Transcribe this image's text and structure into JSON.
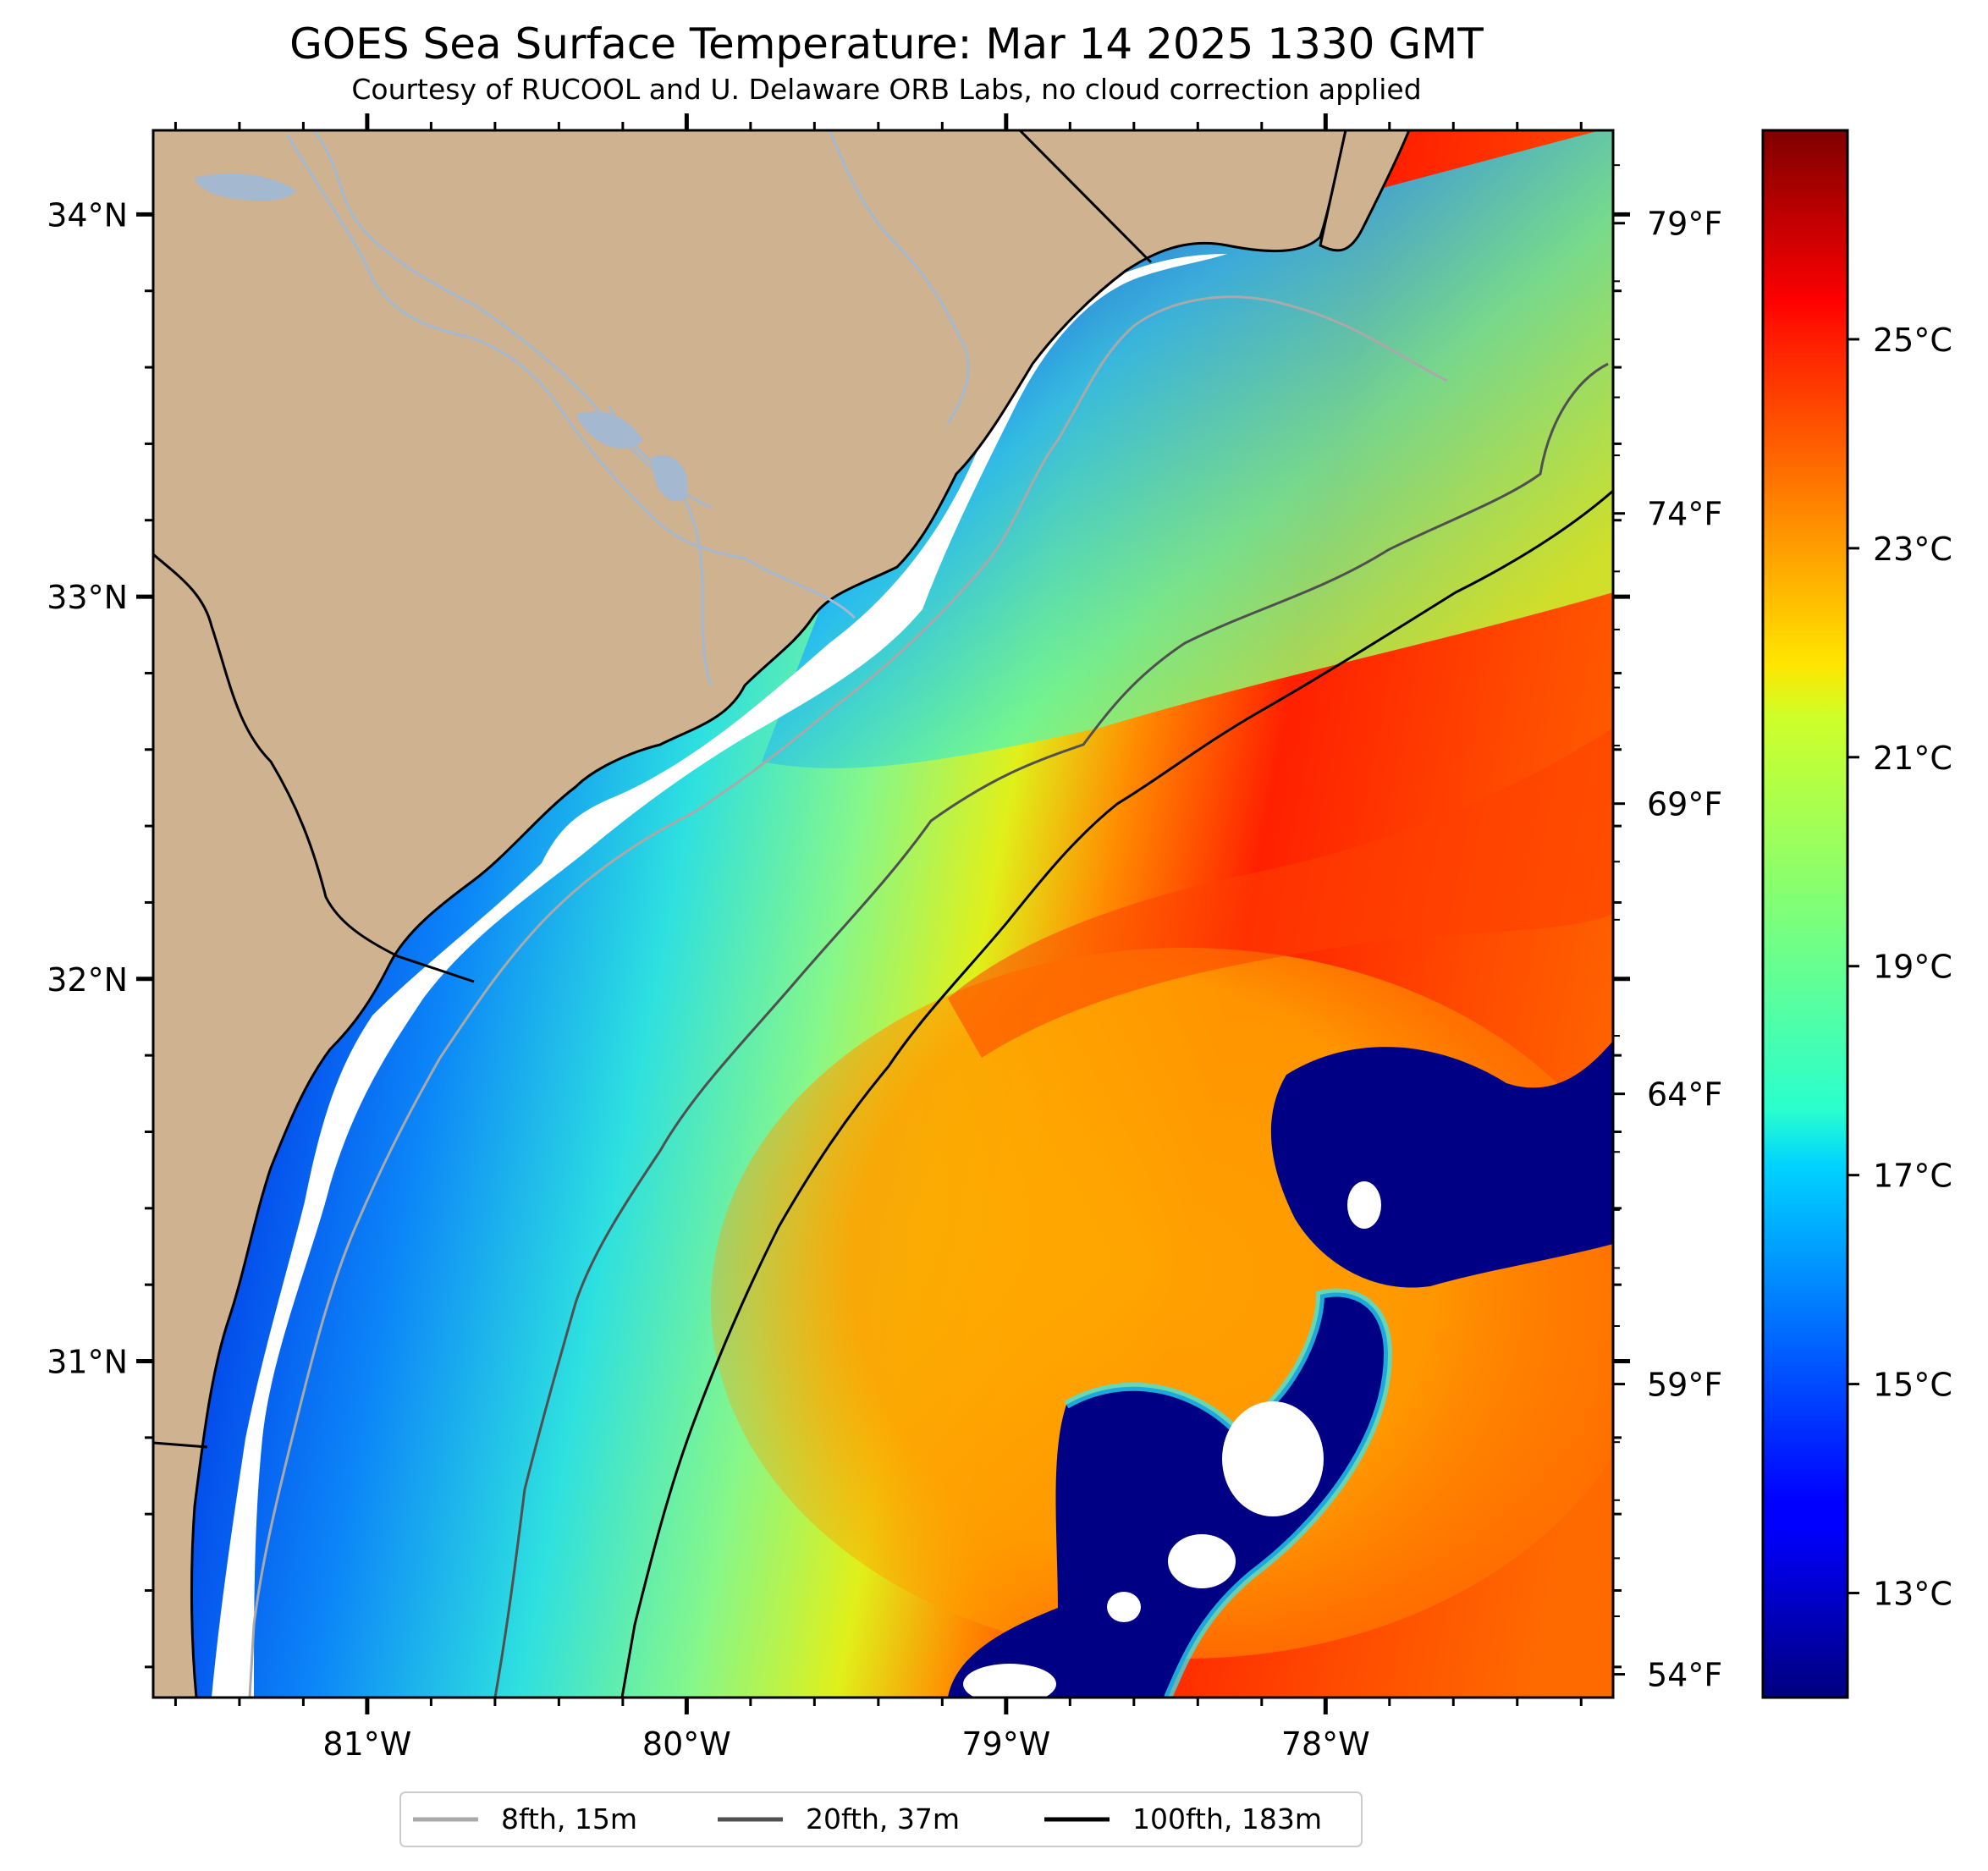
{
  "title": "GOES Sea Surface Temperature: Mar 14 2025 1330 GMT",
  "subtitle": "Courtesy of RUCOOL and U. Delaware ORB Labs, no cloud correction applied",
  "colors": {
    "land": "#cfb28f",
    "river": "#a4b8d0",
    "no_data": "#ffffff",
    "colormap": "jet"
  },
  "map": {
    "lon_range": [
      -81.67,
      -77.1
    ],
    "lat_range": [
      30.12,
      34.22
    ],
    "lon_ticks": [
      "81°W",
      "80°W",
      "79°W",
      "78°W"
    ],
    "lat_ticks": [
      "34°N",
      "33°N",
      "32°N",
      "31°N"
    ],
    "fahrenheit_ticks": [
      "79°F",
      "74°F",
      "69°F",
      "64°F",
      "59°F",
      "54°F"
    ]
  },
  "colorbar": {
    "range_c": [
      12.0,
      27.0
    ],
    "labels": [
      "25°C",
      "23°C",
      "21°C",
      "19°C",
      "17°C",
      "15°C",
      "13°C"
    ]
  },
  "legend": {
    "items": [
      {
        "label": "8fth, 15m",
        "color": "#a9a9a9"
      },
      {
        "label": "20fth, 37m",
        "color": "#505050"
      },
      {
        "label": "100fth, 183m",
        "color": "#000000"
      }
    ]
  }
}
